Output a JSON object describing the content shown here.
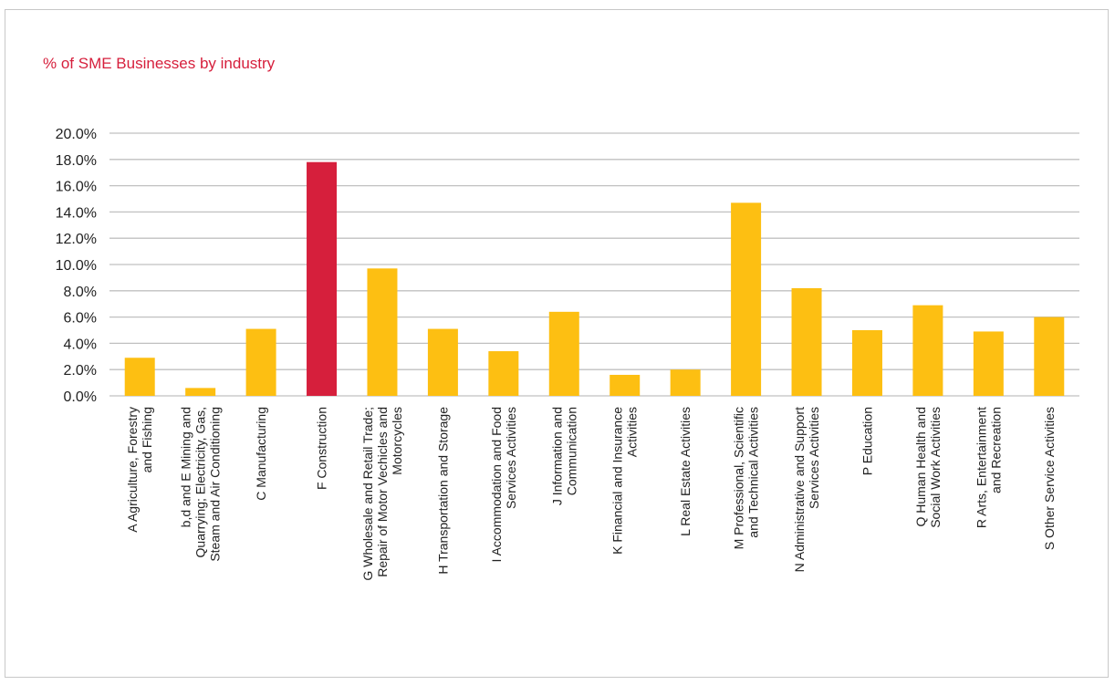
{
  "chart_data": {
    "type": "bar",
    "title": "% of SME Businesses by industry",
    "xlabel": "",
    "ylabel": "",
    "ylim": [
      0,
      20
    ],
    "yticks": [
      "0.0%",
      "2.0%",
      "4.0%",
      "6.0%",
      "8.0%",
      "10.0%",
      "12.0%",
      "14.0%",
      "16.0%",
      "18.0%",
      "20.0%"
    ],
    "grid": true,
    "legend": "none",
    "colors": {
      "default": "#fdbf12",
      "highlight": "#d61f3c",
      "title": "#d61f3c",
      "grid": "#c0c0c0"
    },
    "highlight_index": 3,
    "categories": [
      [
        "A Agriculture, Forestry",
        "and Fishing"
      ],
      [
        "b,d and E Mining and",
        "Quarrying; Electricity, Gas,",
        "Steam and Air Conditioning"
      ],
      [
        "C Manufacturing"
      ],
      [
        "F Construction"
      ],
      [
        "G Wholesale and Retail Trade;",
        "Repair of Motor Vechicles and",
        "Motorcycles"
      ],
      [
        "H Transportation and Storage"
      ],
      [
        "I Accommodation and Food",
        "Services Activities"
      ],
      [
        "J Information and",
        "Communication"
      ],
      [
        "K Financial and Insurance",
        "Activities"
      ],
      [
        "L Real Estate Activities"
      ],
      [
        "M Professional, Scientific",
        "and Technical Activities"
      ],
      [
        "N Administrative and Support",
        "Services Activities"
      ],
      [
        "P Education"
      ],
      [
        "Q Human Health and",
        "Social Work Activities"
      ],
      [
        "R Arts, Entertainment",
        "and Recreation"
      ],
      [
        "S Other Service Activities"
      ]
    ],
    "values": [
      2.9,
      0.6,
      5.1,
      17.8,
      9.7,
      5.1,
      3.4,
      6.4,
      1.6,
      2.0,
      14.7,
      8.2,
      5.0,
      6.9,
      4.9,
      6.0
    ]
  }
}
